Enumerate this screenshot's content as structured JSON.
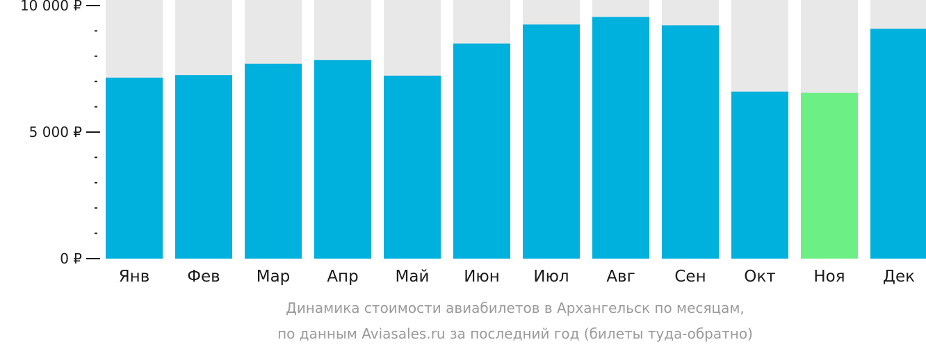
{
  "chart_data": {
    "type": "bar",
    "categories": [
      "Янв",
      "Фев",
      "Мар",
      "Апр",
      "Май",
      "Июн",
      "Июл",
      "Авг",
      "Сен",
      "Окт",
      "Ноя",
      "Дек"
    ],
    "values": [
      7150,
      7250,
      7700,
      7850,
      7230,
      8500,
      9250,
      9550,
      9220,
      6600,
      6550,
      9080
    ],
    "ylim": [
      0,
      10000
    ],
    "yticks": [
      {
        "value": 0,
        "label": "0 ₽"
      },
      {
        "value": 5000,
        "label": "5 000 ₽"
      },
      {
        "value": 10000,
        "label": "10 000 ₽"
      }
    ],
    "minor_tick_step": 1000,
    "highlight_index": 10,
    "caption_line1": "Динамика стоимости авиабилетов в Архангельск по месяцам,",
    "caption_line2": "по данным Aviasales.ru за последний год (билеты туда-обратно)",
    "colors": {
      "bar": "#00b0dd",
      "highlight": "#6cef85",
      "background_track": "#e8e8e8",
      "axis": "#1a1a1a",
      "caption": "#9a9a9a"
    }
  }
}
